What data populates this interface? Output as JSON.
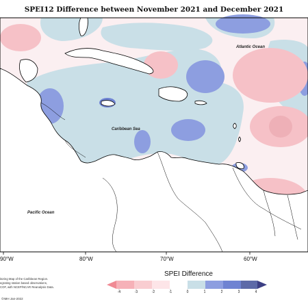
{
  "title": "SPEI12 Difference between November 2021 and December 2021",
  "map": {
    "region_labels": {
      "atlantic": "Atlantic Ocean",
      "caribbean": "Caribbean Sea",
      "pacific": "Pacific Ocean"
    },
    "longitude_ticks": [
      "90°W",
      "80°W",
      "70°W",
      "60°W"
    ]
  },
  "legend": {
    "title": "SPEI Difference",
    "ticks": [
      "-4",
      "-3",
      "-2",
      "-1",
      "0",
      "1",
      "2",
      "3",
      "4"
    ],
    "colors": [
      "#f08a94",
      "#f6b1b8",
      "#f9cdd1",
      "#fde5e8",
      "#c9dfe7",
      "#8d9ee0",
      "#6f83d2",
      "#5d6aa8",
      "#3c3f84"
    ]
  },
  "credits": {
    "lines": [
      "itoring Map of the Caribbean Region.",
      "egrating station based observations,",
      "COF, with NCEP/NCAR Reanalysis Data."
    ],
    "copyright": "©IMH Jan-2022"
  },
  "colors": {
    "ocean_neutral": "#ffffff",
    "dry_light": "#fde5e8",
    "dry_mid": "#f6c1c7",
    "dry_strong": "#eeb0b7",
    "wet_light": "#c9dfe7",
    "wet_mid": "#8d9ee0",
    "wet_strong": "#6f83d2",
    "land": "#ffffff",
    "coast": "#000000"
  }
}
